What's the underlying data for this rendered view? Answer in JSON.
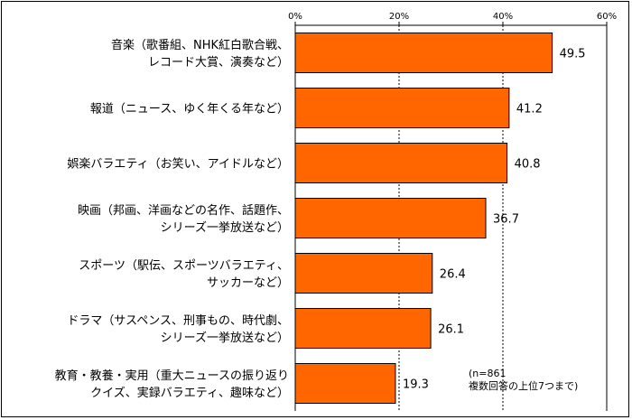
{
  "chart_data": {
    "type": "bar",
    "orientation": "horizontal",
    "categories": [
      [
        "音楽（歌番組、NHK紅白歌合戦、",
        "レコード大賞、演奏など）"
      ],
      [
        "報道（ニュース、ゆく年くる年など）"
      ],
      [
        "娯楽バラエティ（お笑い、アイドルなど）"
      ],
      [
        "映画（邦画、洋画などの名作、話題作、",
        "シリーズ一挙放送など）"
      ],
      [
        "スポーツ（駅伝、スポーツバラエティ、",
        "サッカーなど）"
      ],
      [
        "ドラマ（サスペンス、刑事もの、時代劇、",
        "シリーズ一挙放送など）"
      ],
      [
        "教育・教養・実用（重大ニュースの振り返り",
        "クイズ、実録バラエティ、趣味など）"
      ]
    ],
    "values": [
      49.5,
      41.2,
      40.8,
      36.7,
      26.4,
      26.1,
      19.3
    ],
    "value_labels": [
      "49.5",
      "41.2",
      "40.8",
      "36.7",
      "26.4",
      "26.1",
      "19.3"
    ],
    "xlim": [
      0,
      60
    ],
    "xticks": [
      "0%",
      "20%",
      "40%",
      "60%"
    ],
    "xtick_values": [
      0,
      20,
      40,
      60
    ],
    "grid": true,
    "bar_color": "#ff6600",
    "bar_edge_color": "#000000",
    "note": [
      "(n=861",
      "複数回答の上位7つまで)"
    ]
  }
}
